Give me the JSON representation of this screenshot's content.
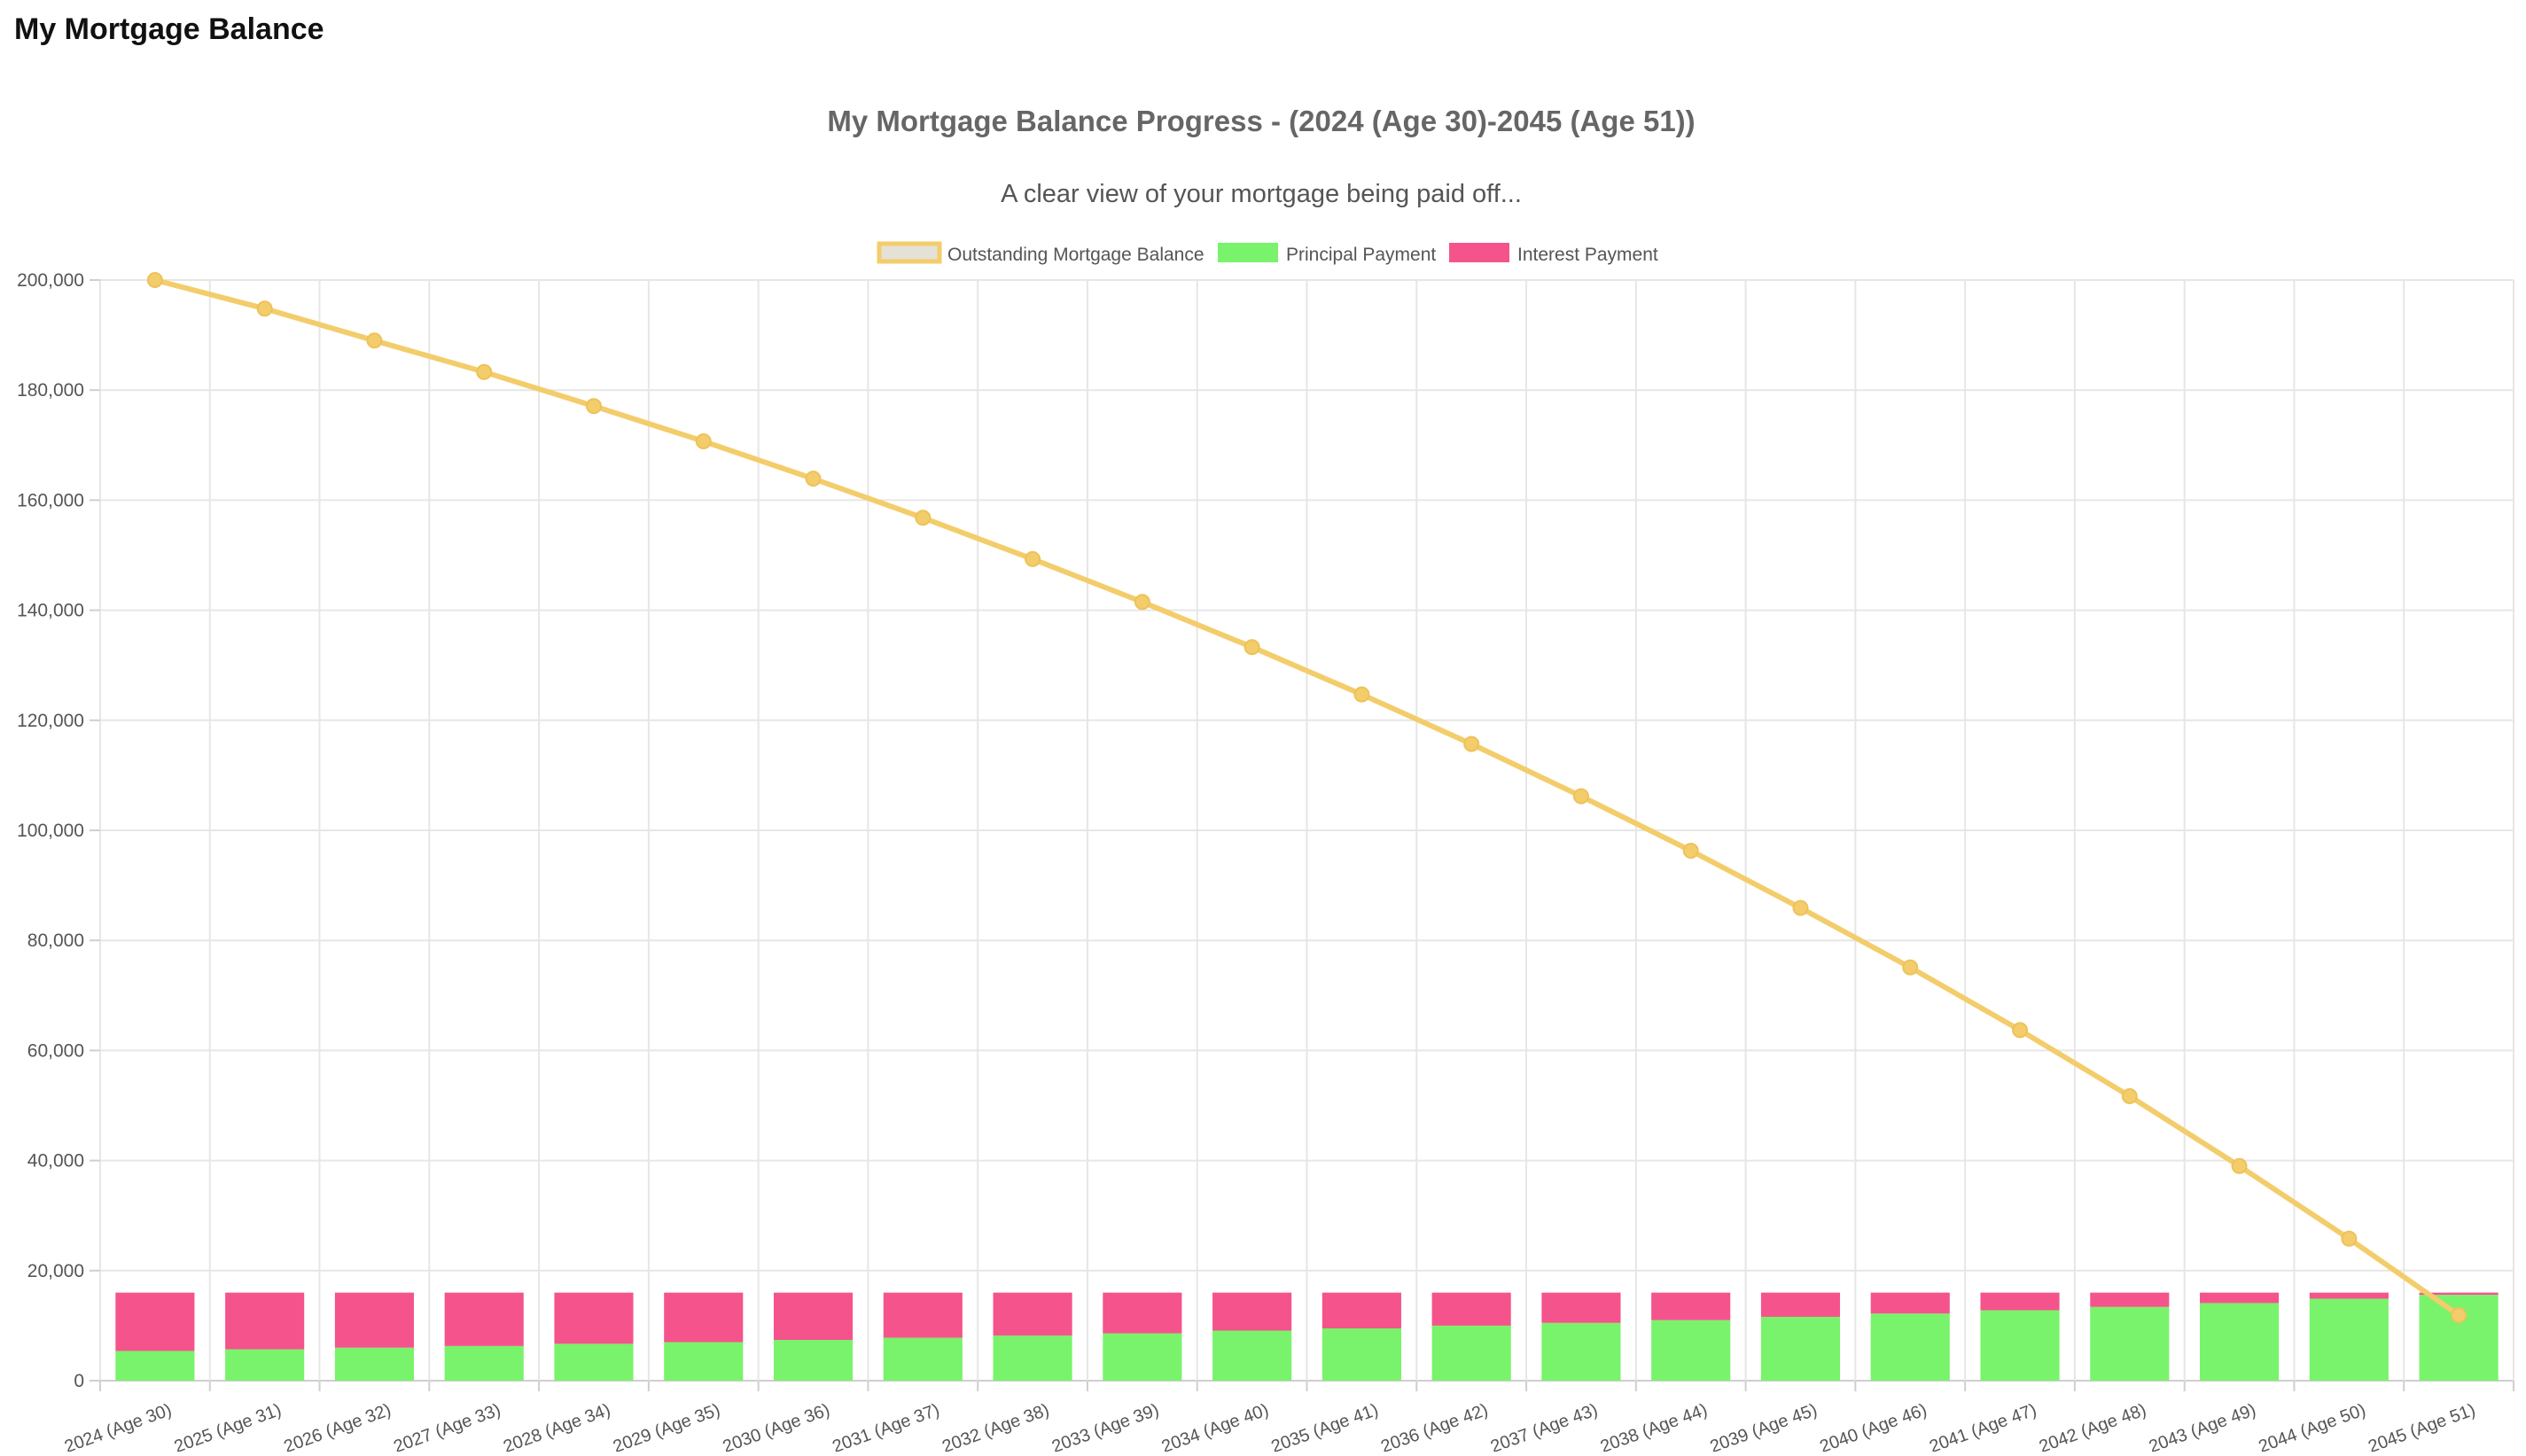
{
  "page": {
    "heading": "My Mortgage Balance"
  },
  "chart_data": {
    "type": "bar",
    "title": "My Mortgage Balance Progress - (2024 (Age 30)-2045 (Age 51))",
    "subtitle": "A clear view of your mortgage being paid off...",
    "legend_position": "top",
    "grid": true,
    "stacked": true,
    "ylim": [
      0,
      200000
    ],
    "y_ticks": [
      "200,000",
      "180,000",
      "160,000",
      "140,000",
      "120,000",
      "100,000",
      "80,000",
      "60,000",
      "40,000",
      "20,000",
      "0"
    ],
    "categories": [
      "2024 (Age 30)",
      "2025 (Age 31)",
      "2026 (Age 32)",
      "2027 (Age 33)",
      "2028 (Age 34)",
      "2029 (Age 35)",
      "2030 (Age 36)",
      "2031 (Age 37)",
      "2032 (Age 38)",
      "2033 (Age 39)",
      "2034 (Age 40)",
      "2035 (Age 41)",
      "2036 (Age 42)",
      "2037 (Age 43)",
      "2038 (Age 44)",
      "2039 (Age 45)",
      "2040 (Age 46)",
      "2041 (Age 47)",
      "2042 (Age 48)",
      "2043 (Age 49)",
      "2044 (Age 50)",
      "2045 (Age 51)"
    ],
    "series": [
      {
        "name": "Outstanding Mortgage Balance",
        "type": "line",
        "color": "#f3cd6b",
        "values": [
          200000,
          194800,
          189000,
          183300,
          177100,
          170700,
          163900,
          156800,
          149300,
          141500,
          133300,
          124700,
          115700,
          106200,
          96300,
          85900,
          75100,
          63700,
          51700,
          39000,
          25800,
          11900
        ]
      },
      {
        "name": "Principal Payment",
        "type": "bar",
        "color": "#78f36b",
        "values": [
          5400,
          5700,
          6000,
          6300,
          6700,
          7000,
          7400,
          7800,
          8200,
          8600,
          9100,
          9500,
          10000,
          10500,
          11000,
          11600,
          12200,
          12800,
          13400,
          14100,
          14900,
          15600
        ]
      },
      {
        "name": "Interest Payment",
        "type": "bar",
        "color": "#f4548b",
        "values": [
          10600,
          10300,
          10000,
          9700,
          9300,
          9000,
          8600,
          8200,
          7800,
          7400,
          6900,
          6500,
          6000,
          5500,
          5000,
          4400,
          3800,
          3200,
          2600,
          1900,
          1100,
          400
        ]
      }
    ]
  }
}
